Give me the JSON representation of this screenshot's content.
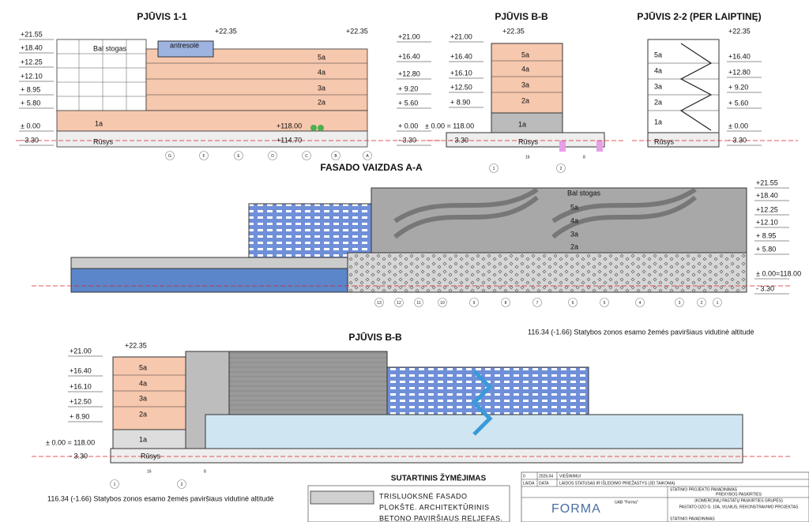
{
  "section_1_1": {
    "title": "PJŪVIS 1-1",
    "top_left": "+22.35",
    "top_right": "+22.35",
    "left_levels": [
      "+21.55",
      "+18.40",
      "+12.25",
      "+12.10",
      "+ 8.95",
      "+ 5.80",
      "± 0.00",
      "- 3.30"
    ],
    "right_levels": [
      "+21.00",
      "+16.40",
      "+12.80",
      "+ 9.20",
      "+ 5.60",
      "+ 0.00",
      "- 3.30"
    ],
    "roof": "Bal stogas",
    "mezzanine": "antresolė",
    "floors": [
      "5a",
      "4a",
      "3a",
      "2a",
      "1a",
      "Rūsys"
    ],
    "inner_levels": [
      "+118.00",
      "+114.70"
    ],
    "axes": [
      "G",
      "F",
      "E",
      "D",
      "C",
      "B",
      "A"
    ]
  },
  "section_b_b_top": {
    "title": "PJŪVIS B-B",
    "top": "+22.35",
    "levels": [
      "+21.00",
      "+16.40",
      "+16.10",
      "+12.50",
      "+ 8.90",
      "± 0.00 = 118.00",
      "- 3.30"
    ],
    "floors": [
      "5a",
      "4a",
      "3a",
      "2a",
      "1a",
      "Rūsys"
    ],
    "dims": [
      "16",
      "8"
    ],
    "axes": [
      "1",
      "2"
    ]
  },
  "section_2_2": {
    "title": "PJŪVIS 2-2 (PER LAIPTINĘ)",
    "top": "+22.35",
    "levels": [
      "+16.40",
      "+12.80",
      "+ 9.20",
      "+ 5.60",
      "± 0.00",
      "- 3.30"
    ],
    "floors": [
      "5a",
      "4a",
      "3a",
      "2a",
      "1a",
      "Rūsys"
    ]
  },
  "facade_a_a": {
    "title": "FASADO VAIZDAS A-A",
    "levels": [
      "+21.55",
      "+18.40",
      "+12.25",
      "+12.10",
      "+ 8.95",
      "+ 5.80",
      "± 0.00=118.00",
      "- 3.30"
    ],
    "floors": [
      "Bal stogas",
      "5a",
      "4a",
      "3a",
      "2a"
    ],
    "axes": [
      "13",
      "12",
      "11",
      "10",
      "9",
      "8",
      "7",
      "6",
      "5",
      "4",
      "3",
      "2",
      "1"
    ],
    "note": "116.34 (-1.66) Statybos zonos esamo žemės paviršiaus vidutinė altitudė"
  },
  "section_b_b_bottom": {
    "title": "PJŪVIS B-B",
    "top": "+22.35",
    "levels": [
      "+21.00",
      "+16.40",
      "+16.10",
      "+12.50",
      "+ 8.90",
      "± 0.00 = 118.00",
      "- 3.30"
    ],
    "floors": [
      "5a",
      "4a",
      "3a",
      "2a",
      "1a",
      "Rūsys"
    ],
    "dims": [
      "16",
      "8"
    ],
    "axes": [
      "1",
      "2"
    ],
    "note": "116.34 (-1.66) Statybos zonos esamo žemės paviršiaus vidutinė altitudė"
  },
  "legend": {
    "title": "SUTARTINIS ŽYMĖJIMAS",
    "item_lines": [
      "TRISLUOKSNĖ FASADO",
      "PLOKŠTĖ. ARCHITEKTŪRINIS",
      "BETONO PAVIRŠIAUS RELJEFAS."
    ]
  },
  "title_block": {
    "issue": [
      "0",
      "2026.04",
      "VIEŠINIMUI"
    ],
    "issue_header": [
      "LAIDA",
      "DATA",
      "LAIDOS STATUSAS IR IŠLEIDIMO PRIEŽASTYS (JEI TAIKOMA)"
    ],
    "logo": "FORMA",
    "company": "UAB \"Forma\"",
    "project_label": "STATINIO PROJEKTO PAVADINIMAS",
    "project": [
      "PREKYBOS PASKIRTIES",
      "(KOMERCINIŲ PASTATŲ PASKIRTIES GRUPĖS)",
      "PASTATO OZO G. 10A, VILNIUS, REKONSTRAVIMO PROJEKTAS"
    ],
    "building_label": "STATINIO PAVADINIMAS"
  }
}
